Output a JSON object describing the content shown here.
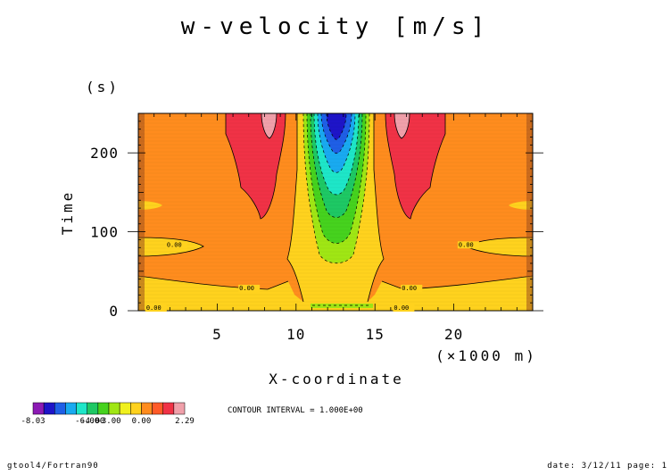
{
  "chart_data": {
    "type": "heatmap",
    "title": "w-velocity [m/s]",
    "xlabel": "X-coordinate",
    "xunit": "(×1000 m)",
    "ylabel": "Time",
    "yunit": "(s)",
    "xlim": [
      0,
      25
    ],
    "ylim": [
      0,
      250
    ],
    "xticks": [
      {
        "value": 5,
        "label": "5"
      },
      {
        "value": 10,
        "label": "10"
      },
      {
        "value": 15,
        "label": "15"
      },
      {
        "value": 20,
        "label": "20"
      }
    ],
    "yticks": [
      {
        "value": 0,
        "label": "0"
      },
      {
        "value": 100,
        "label": "100"
      },
      {
        "value": 200,
        "label": "200"
      }
    ],
    "contour_labels": [
      {
        "x": 1.8,
        "y": 80,
        "text": "0.00"
      },
      {
        "x": 6.4,
        "y": 25,
        "text": "0.00"
      },
      {
        "x": 16.7,
        "y": 25,
        "text": "0.00"
      },
      {
        "x": 20.3,
        "y": 80,
        "text": "0.00"
      },
      {
        "x": 0.5,
        "y": 0,
        "text": "0.00"
      },
      {
        "x": 16.2,
        "y": 0,
        "text": "0.00"
      }
    ],
    "colorbar": {
      "colors": [
        "#8c1ab4",
        "#1e14c8",
        "#1f5fe6",
        "#19aaf0",
        "#1ee6c8",
        "#1ec864",
        "#46d21e",
        "#a0e614",
        "#f0f01e",
        "#ffd21e",
        "#ff8c1e",
        "#ff5a28",
        "#f03246",
        "#f0a0aa"
      ],
      "labels": [
        "-8.03",
        "-6.00",
        "-4.00",
        "-3.00",
        "0.00",
        "2.29"
      ]
    },
    "contour_interval": "CONTOUR INTERVAL = 1.000E+00"
  },
  "footer": {
    "left": "gtool4/Fortran90",
    "right": "date: 3/12/11 page: 1"
  }
}
